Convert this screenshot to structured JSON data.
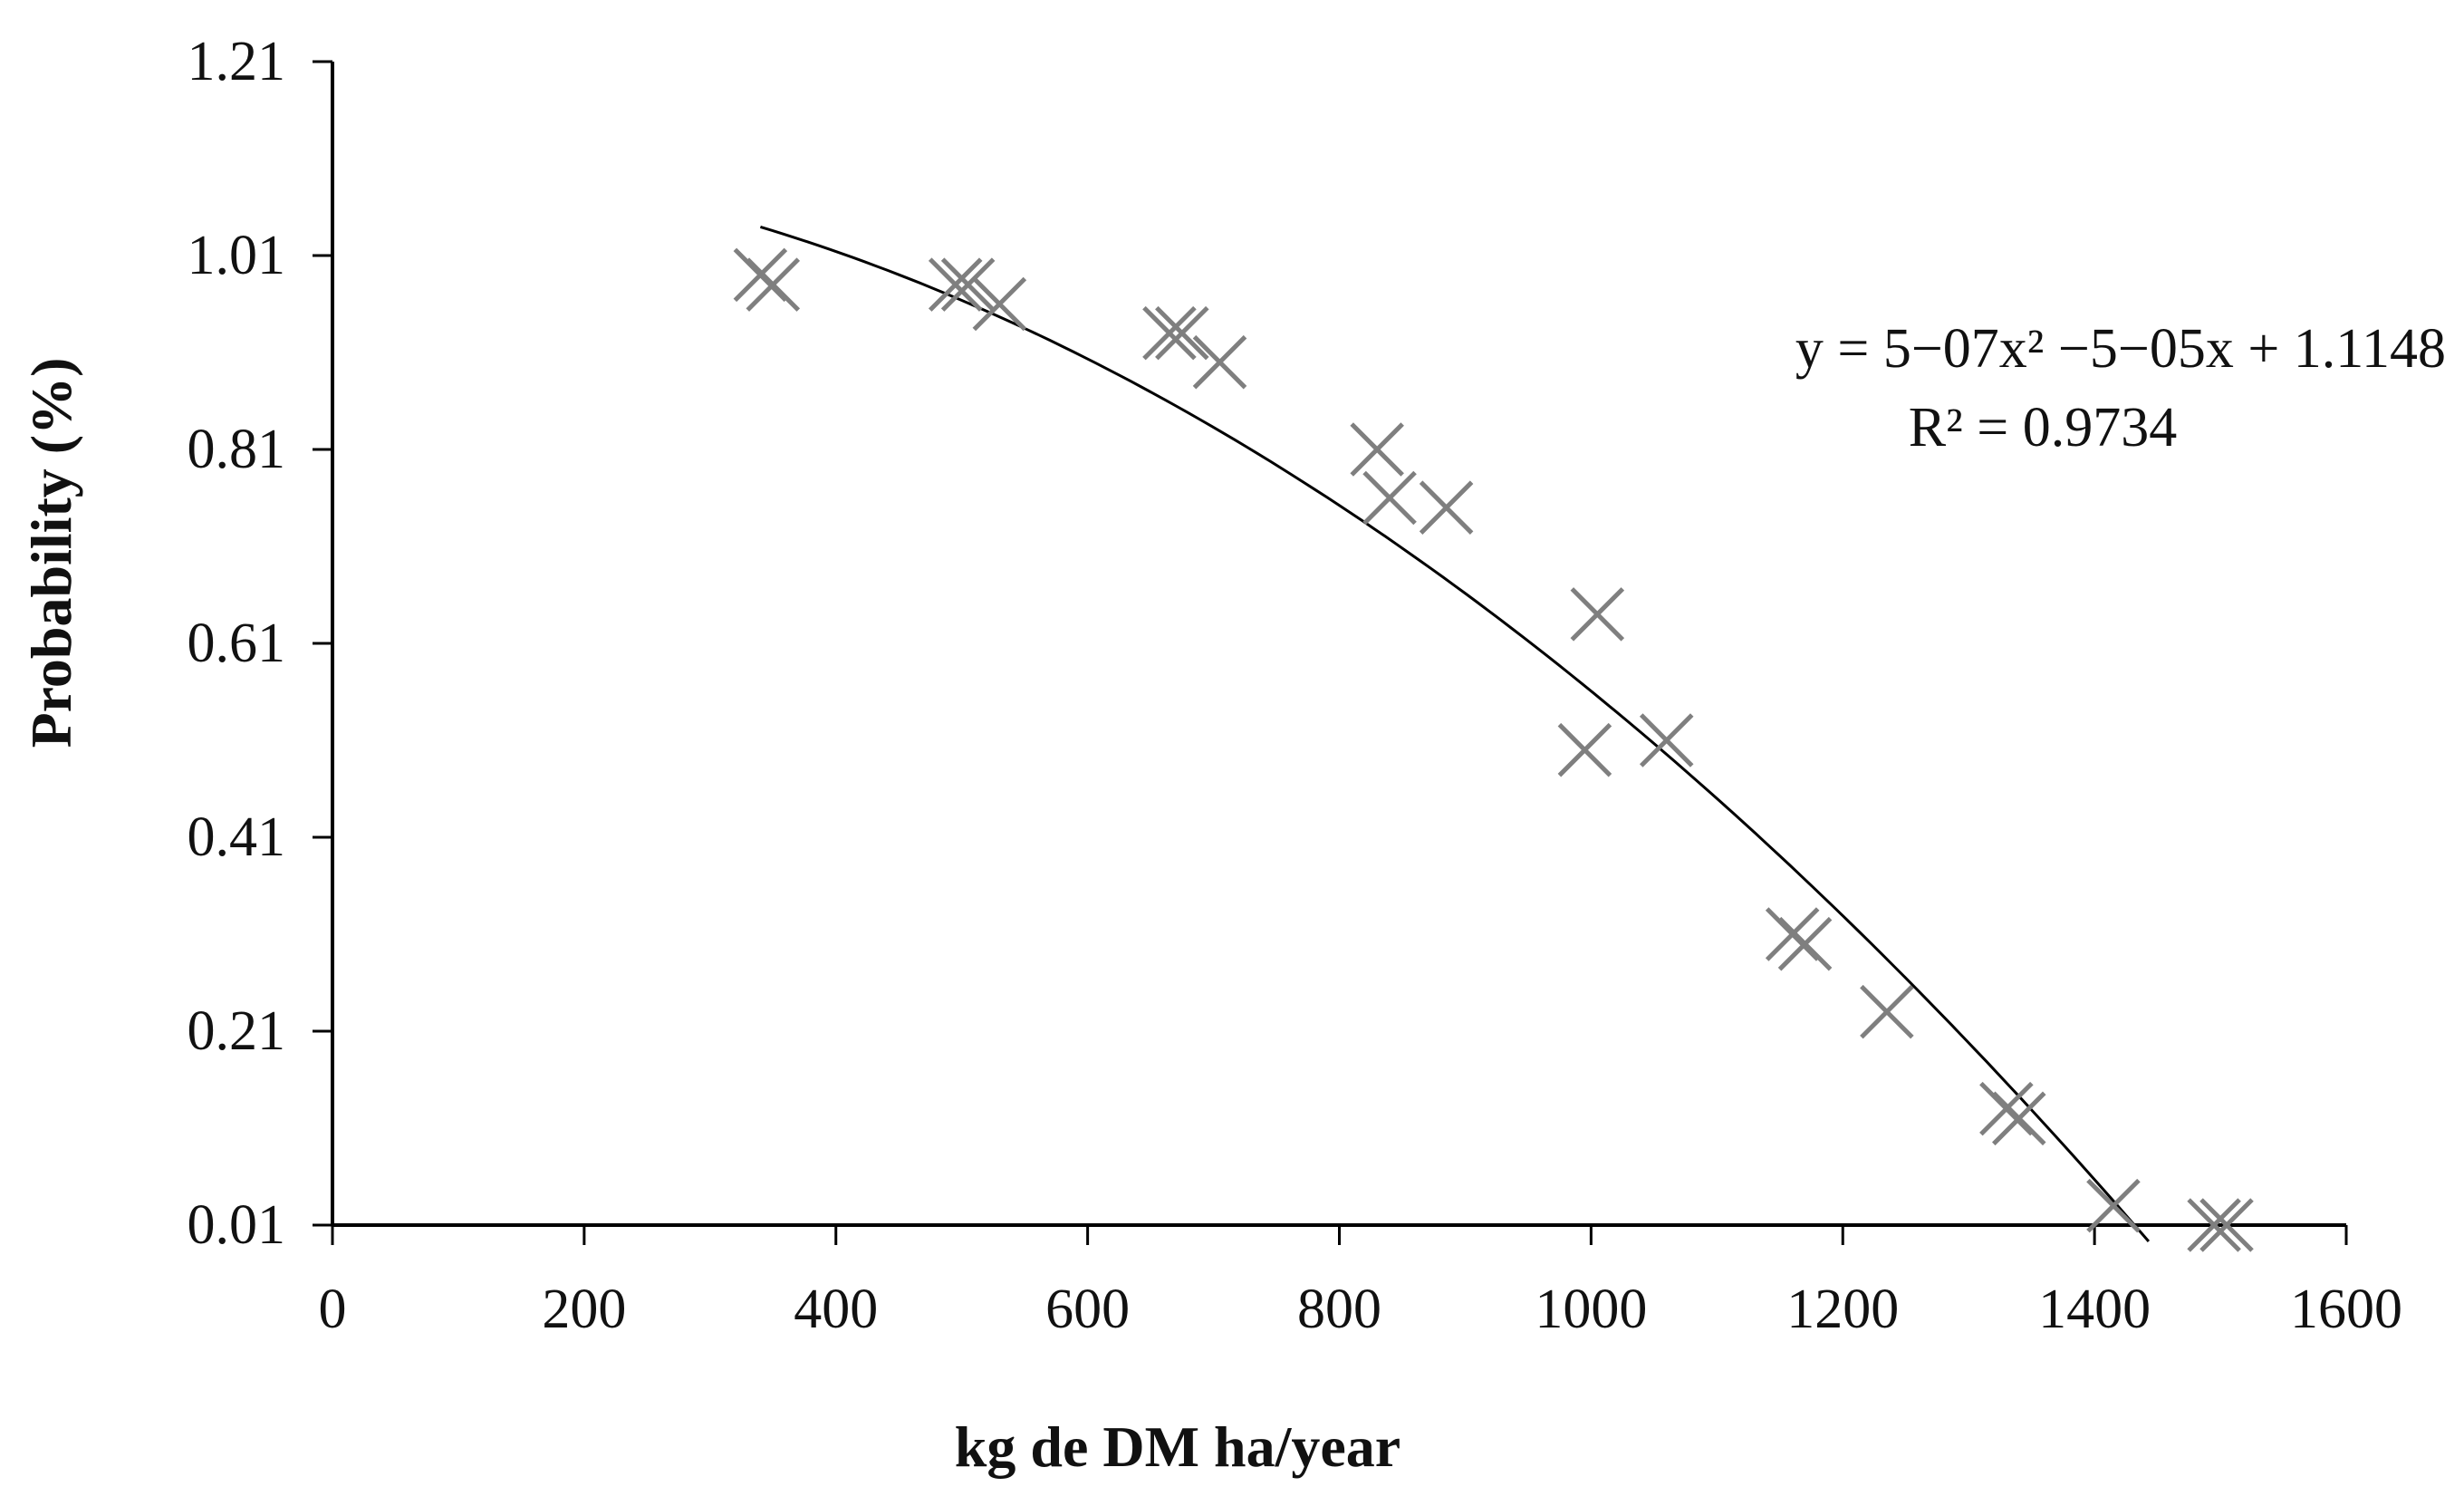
{
  "chart_data": {
    "type": "scatter",
    "xlabel": "kg de DM ha/year",
    "ylabel": "Probability (%)",
    "xlim": [
      0,
      1600
    ],
    "ylim": [
      0.01,
      1.21
    ],
    "x_ticks": [
      "0",
      "200",
      "400",
      "600",
      "800",
      "1000",
      "1200",
      "1400",
      "1600"
    ],
    "y_ticks": [
      "0.01",
      "0.21",
      "0.41",
      "0.61",
      "0.81",
      "1.01",
      "1.21"
    ],
    "x_tick_values": [
      0,
      200,
      400,
      600,
      800,
      1000,
      1200,
      1400,
      1600
    ],
    "y_tick_values": [
      0.01,
      0.21,
      0.41,
      0.61,
      0.81,
      1.01,
      1.21
    ],
    "grid": false,
    "marker": "x",
    "marker_color": "#7f7f7f",
    "trendline_color": "#000000",
    "series": [
      {
        "values": [
          {
            "x": 340,
            "y": 0.99
          },
          {
            "x": 350,
            "y": 0.98
          },
          {
            "x": 495,
            "y": 0.98
          },
          {
            "x": 505,
            "y": 0.98
          },
          {
            "x": 530,
            "y": 0.96
          },
          {
            "x": 665,
            "y": 0.93
          },
          {
            "x": 675,
            "y": 0.93
          },
          {
            "x": 705,
            "y": 0.9
          },
          {
            "x": 830,
            "y": 0.81
          },
          {
            "x": 840,
            "y": 0.76
          },
          {
            "x": 885,
            "y": 0.75
          },
          {
            "x": 995,
            "y": 0.5
          },
          {
            "x": 1005,
            "y": 0.64
          },
          {
            "x": 1060,
            "y": 0.51
          },
          {
            "x": 1160,
            "y": 0.31
          },
          {
            "x": 1170,
            "y": 0.3
          },
          {
            "x": 1235,
            "y": 0.23
          },
          {
            "x": 1330,
            "y": 0.13
          },
          {
            "x": 1340,
            "y": 0.12
          },
          {
            "x": 1415,
            "y": 0.03
          },
          {
            "x": 1495,
            "y": 0.01
          },
          {
            "x": 1505,
            "y": 0.01
          }
        ]
      }
    ],
    "trendline": {
      "type": "polynomial",
      "x_range": [
        340,
        1443
      ],
      "coefficients": {
        "a": -5.04e-07,
        "b": -5e-05,
        "c": 1.1148
      }
    },
    "annotations": {
      "equation": "y = 5−07x² −5−05x + 1.1148",
      "r_squared": "R² = 0.9734"
    }
  }
}
